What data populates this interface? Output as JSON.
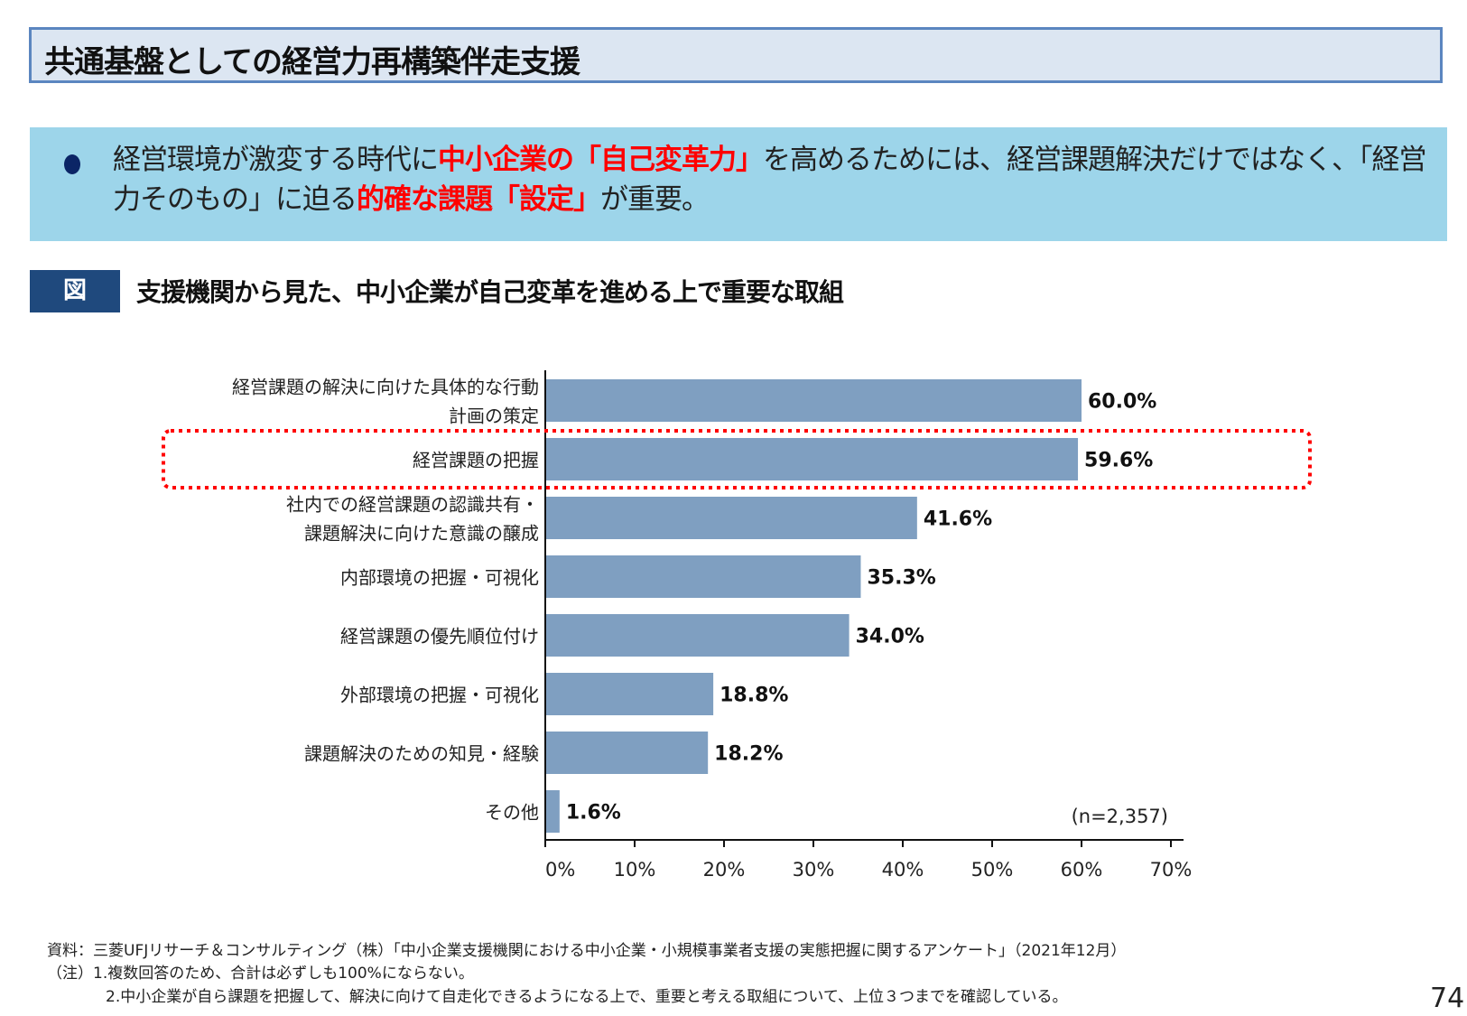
{
  "header": {
    "title": "共通基盤としての経営力再構築伴走支援"
  },
  "lead": {
    "segments": [
      {
        "text": "経営環境が激変する時代に",
        "highlight": false
      },
      {
        "text": "中小企業の「自己変革力」",
        "highlight": true
      },
      {
        "text": "を高めるためには、経営課題解決だけではなく、「経営力そのもの」に迫る",
        "highlight": false
      },
      {
        "text": "的確な課題「設定」",
        "highlight": true
      },
      {
        "text": "が重要。",
        "highlight": false
      }
    ],
    "highlight_color": "#ff0000"
  },
  "figure": {
    "tag": "図",
    "title": "支援機関から見た、中小企業が自己変革を進める上で重要な取組"
  },
  "chart_data": {
    "type": "bar",
    "orientation": "horizontal",
    "categories": [
      "経営課題の解決に向けた具体的な行動\n計画の策定",
      "経営課題の把握",
      "社内での経営課題の認識共有・\n課題解決に向けた意識の醸成",
      "内部環境の把握・可視化",
      "経営課題の優先順位付け",
      "外部環境の把握・可視化",
      "課題解決のための知見・経験",
      "その他"
    ],
    "values": [
      60.0,
      59.6,
      41.6,
      35.3,
      34.0,
      18.8,
      18.2,
      1.6
    ],
    "data_labels": [
      "60.0%",
      "59.6%",
      "41.6%",
      "35.3%",
      "34.0%",
      "18.8%",
      "18.2%",
      "1.6%"
    ],
    "xlim": [
      0,
      70
    ],
    "xticks": [
      "0%",
      "10%",
      "20%",
      "30%",
      "40%",
      "50%",
      "60%",
      "70%"
    ],
    "annotation": "(n=2,357)",
    "highlighted_category": "経営課題の把握",
    "bar_color": "#7f9fc1",
    "highlight_box_color": "#ff0000",
    "grid": false
  },
  "footer": {
    "source": "資料：三菱UFJリサーチ＆コンサルティング（株）「中小企業支援機関における中小企業・小規模事業者支援の実態把握に関するアンケート」（2021年12月）",
    "note1": "（注）1.複数回答のため、合計は必ずしも100%にならない。",
    "note2": "2.中小企業が自ら課題を把握して、解決に向けて自走化できるようになる上で、重要と考える取組について、上位３つまでを確認している。"
  },
  "page_number": "74"
}
